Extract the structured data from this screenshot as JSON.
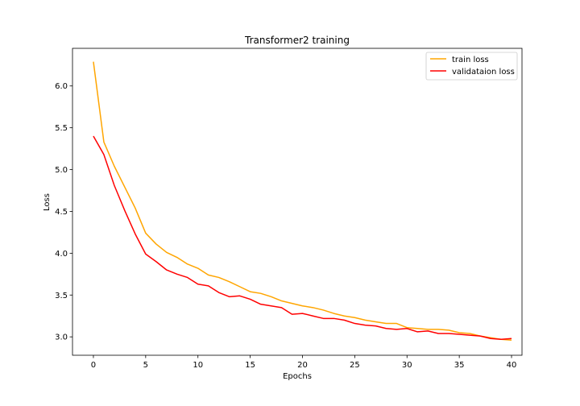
{
  "chart_data": {
    "type": "line",
    "title": "Transformer2 training",
    "xlabel": "Epochs",
    "ylabel": "Loss",
    "xlim": [
      -2,
      41
    ],
    "ylim": [
      2.78,
      6.45
    ],
    "xticks": [
      0,
      5,
      10,
      15,
      20,
      25,
      30,
      35,
      40
    ],
    "yticks": [
      3.0,
      3.5,
      4.0,
      4.5,
      5.0,
      5.5,
      6.0
    ],
    "ytick_labels": [
      "3.0",
      "3.5",
      "4.0",
      "4.5",
      "5.0",
      "5.5",
      "6.0"
    ],
    "grid": false,
    "legend_position": "top-right",
    "x": [
      0,
      1,
      2,
      3,
      4,
      5,
      6,
      7,
      8,
      9,
      10,
      11,
      12,
      13,
      14,
      15,
      16,
      17,
      18,
      19,
      20,
      21,
      22,
      23,
      24,
      25,
      26,
      27,
      28,
      29,
      30,
      31,
      32,
      33,
      34,
      35,
      36,
      37,
      38,
      39,
      40
    ],
    "series": [
      {
        "name": "train loss",
        "color": "#ffa500",
        "values": [
          6.29,
          5.33,
          5.04,
          4.79,
          4.54,
          4.24,
          4.11,
          4.01,
          3.95,
          3.87,
          3.82,
          3.74,
          3.71,
          3.66,
          3.6,
          3.54,
          3.52,
          3.48,
          3.43,
          3.4,
          3.37,
          3.35,
          3.32,
          3.28,
          3.25,
          3.23,
          3.2,
          3.18,
          3.16,
          3.16,
          3.11,
          3.1,
          3.09,
          3.09,
          3.08,
          3.05,
          3.04,
          3.01,
          2.99,
          2.97,
          2.96
        ]
      },
      {
        "name": "validataion loss",
        "color": "#ff0000",
        "values": [
          5.4,
          5.18,
          4.81,
          4.51,
          4.23,
          3.99,
          3.9,
          3.8,
          3.75,
          3.71,
          3.63,
          3.61,
          3.53,
          3.48,
          3.49,
          3.45,
          3.39,
          3.37,
          3.35,
          3.27,
          3.28,
          3.25,
          3.22,
          3.22,
          3.2,
          3.16,
          3.14,
          3.13,
          3.1,
          3.09,
          3.1,
          3.06,
          3.07,
          3.04,
          3.04,
          3.03,
          3.02,
          3.01,
          2.98,
          2.97,
          2.98
        ]
      }
    ]
  }
}
